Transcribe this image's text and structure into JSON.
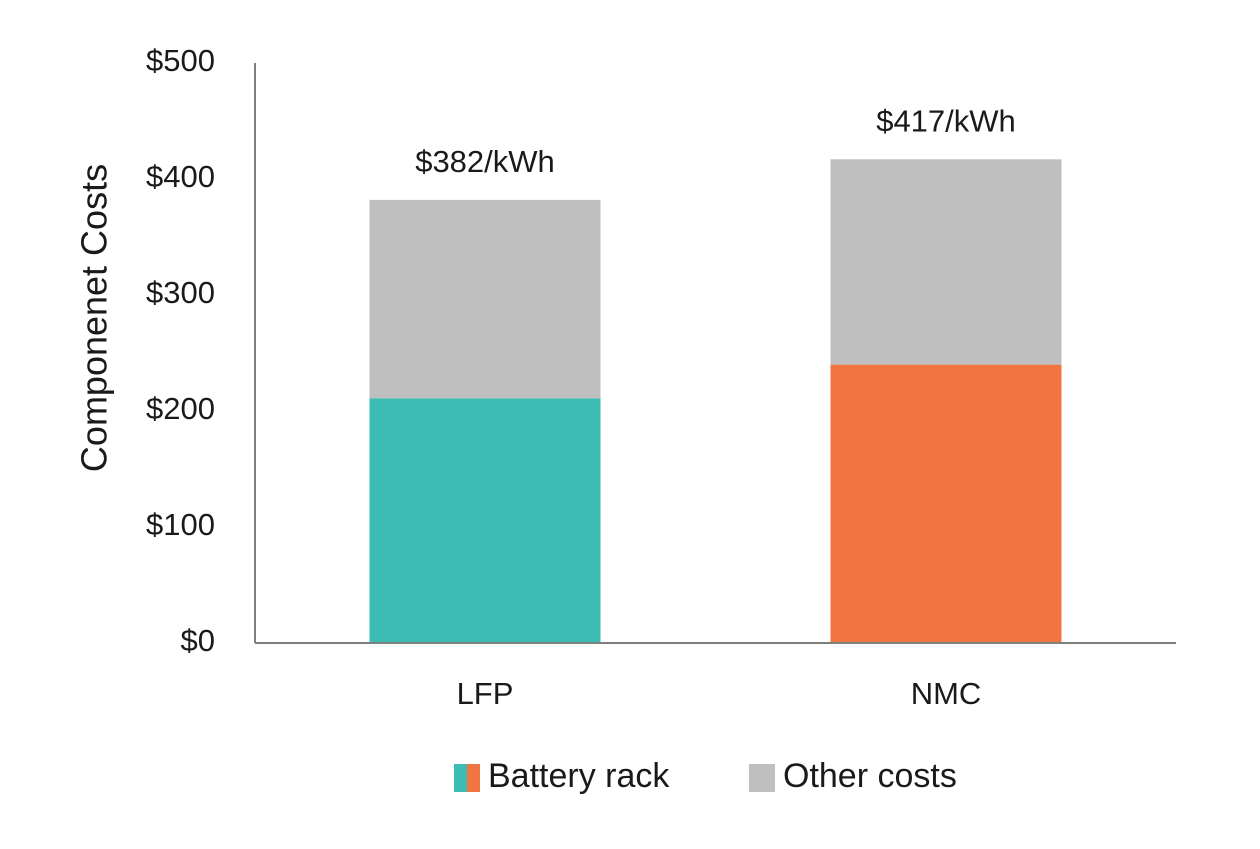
{
  "chart_data": {
    "type": "bar",
    "stacked": true,
    "title": "",
    "xlabel": "",
    "ylabel": "Componenet Costs",
    "ylim": [
      0,
      500
    ],
    "yticks": [
      0,
      100,
      200,
      300,
      400,
      500
    ],
    "ytick_labels": [
      "$0",
      "$100",
      "$200",
      "$300",
      "$400",
      "$500"
    ],
    "categories": [
      "LFP",
      "NMC"
    ],
    "series": [
      {
        "name": "Battery rack",
        "values": [
          211,
          240
        ],
        "colors": [
          "#3cbcb2",
          "#f07540"
        ]
      },
      {
        "name": "Other costs",
        "values": [
          171,
          177
        ],
        "colors": [
          "#bfbfbf",
          "#bfbfbf"
        ]
      }
    ],
    "totals": [
      382,
      417
    ],
    "total_labels": [
      "$382/kWh",
      "$417/kWh"
    ],
    "grid": false,
    "legend": {
      "position": "bottom",
      "items": [
        {
          "label": "Battery rack",
          "colors": [
            "#3cbcb2",
            "#f07540"
          ]
        },
        {
          "label": "Other costs",
          "colors": [
            "#bfbfbf"
          ]
        }
      ]
    },
    "axis_color": "#7f7f7f"
  }
}
